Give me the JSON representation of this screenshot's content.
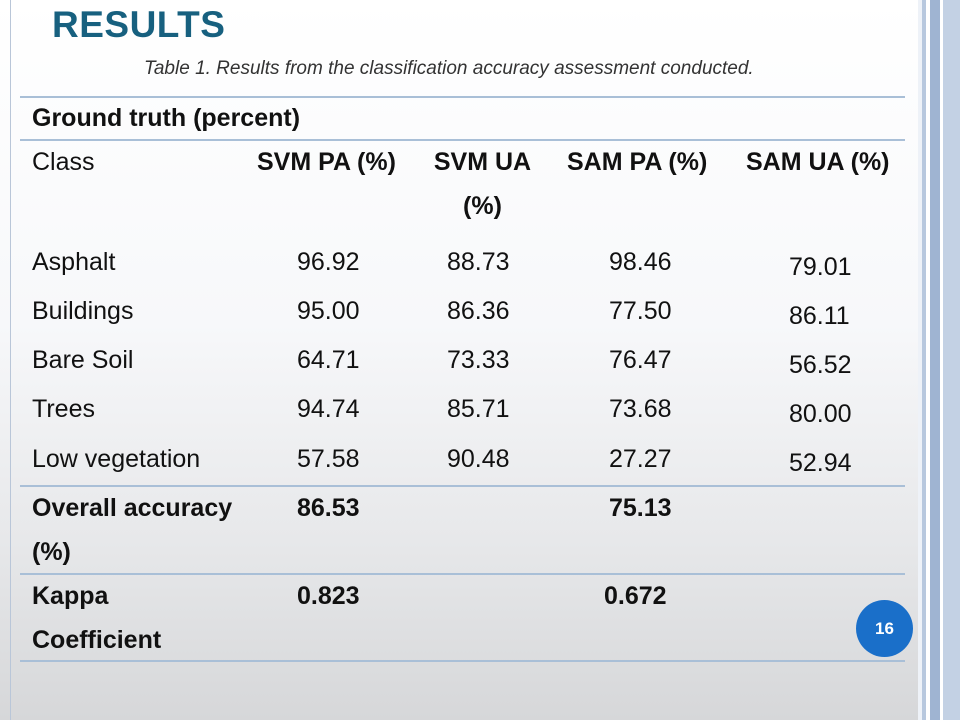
{
  "slide": {
    "title": "RESULTS",
    "caption": "Table 1. Results from the classification accuracy assessment conducted.",
    "page_number": "16"
  },
  "table": {
    "group_header": "Ground truth (percent)",
    "headers": {
      "class": "Class",
      "svm_pa": "SVM PA (%)",
      "svm_ua_line1": "SVM UA",
      "svm_ua_line2": "(%)",
      "sam_pa": "SAM PA (%)",
      "sam_ua": "SAM UA (%)"
    },
    "rows": [
      {
        "class": "Asphalt",
        "svm_pa": "96.92",
        "svm_ua": "88.73",
        "sam_pa": "98.46",
        "sam_ua": "79.01"
      },
      {
        "class": "Buildings",
        "svm_pa": "95.00",
        "svm_ua": "86.36",
        "sam_pa": "77.50",
        "sam_ua": "86.11"
      },
      {
        "class": "Bare Soil",
        "svm_pa": "64.71",
        "svm_ua": "73.33",
        "sam_pa": "76.47",
        "sam_ua": "56.52"
      },
      {
        "class": "Trees",
        "svm_pa": "94.74",
        "svm_ua": "85.71",
        "sam_pa": "73.68",
        "sam_ua": "80.00"
      },
      {
        "class": "Low vegetation",
        "svm_pa": "57.58",
        "svm_ua": "90.48",
        "sam_pa": "27.27",
        "sam_ua": "52.94"
      }
    ],
    "overall": {
      "label_line1": "Overall accuracy",
      "label_line2": "(%)",
      "svm": "86.53",
      "sam": "75.13"
    },
    "kappa": {
      "label_line1": "Kappa",
      "label_line2": "Coefficient",
      "svm": "0.823",
      "sam": "0.672"
    }
  }
}
